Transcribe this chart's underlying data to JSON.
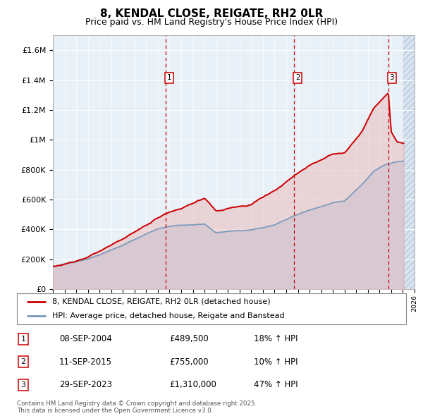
{
  "title": "8, KENDAL CLOSE, REIGATE, RH2 0LR",
  "subtitle": "Price paid vs. HM Land Registry's House Price Index (HPI)",
  "ylim": [
    0,
    1700000
  ],
  "yticks": [
    0,
    200000,
    400000,
    600000,
    800000,
    1000000,
    1200000,
    1400000,
    1600000
  ],
  "ytick_labels": [
    "£0",
    "£200K",
    "£400K",
    "£600K",
    "£800K",
    "£1M",
    "£1.2M",
    "£1.4M",
    "£1.6M"
  ],
  "plot_bg": "#e8f0f8",
  "sale_color": "#cc0000",
  "hpi_color": "#7799bb",
  "transactions": [
    {
      "label": "1",
      "date_num": 2004.69,
      "price": 489500,
      "pct": "18%",
      "date_str": "08-SEP-2004"
    },
    {
      "label": "2",
      "date_num": 2015.69,
      "price": 755000,
      "pct": "10%",
      "date_str": "11-SEP-2015"
    },
    {
      "label": "3",
      "date_num": 2023.75,
      "price": 1310000,
      "pct": "47%",
      "date_str": "29-SEP-2023"
    }
  ],
  "legend_entries": [
    "8, KENDAL CLOSE, REIGATE, RH2 0LR (detached house)",
    "HPI: Average price, detached house, Reigate and Banstead"
  ],
  "footer": "Contains HM Land Registry data © Crown copyright and database right 2025.\nThis data is licensed under the Open Government Licence v3.0.",
  "xmin": 1995,
  "xmax": 2026,
  "future_start": 2025.0
}
